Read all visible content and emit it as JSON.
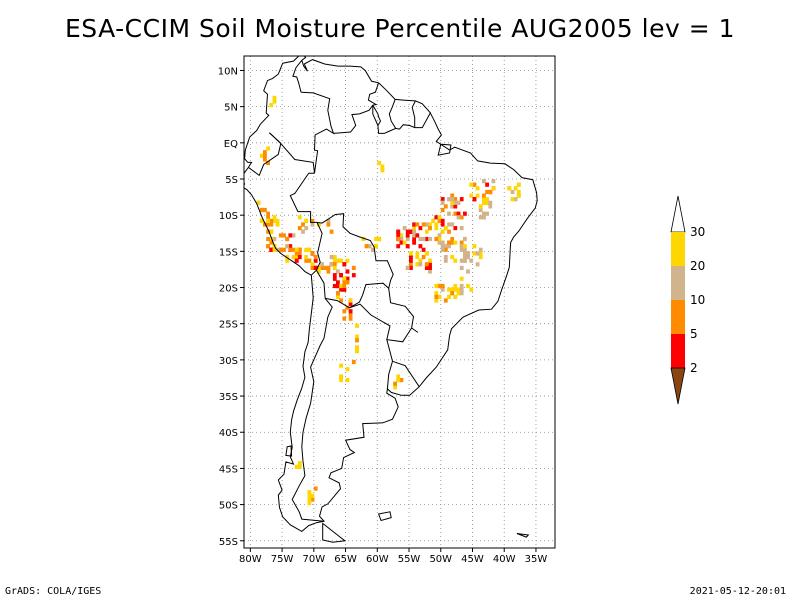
{
  "title": "ESA-CCIM Soil Moisture Percentile AUG2005 lev = 1",
  "footer": {
    "left": "GrADS: COLA/IGES",
    "right": "2021-05-12-20:01"
  },
  "map": {
    "lon_range": [
      -81,
      -32
    ],
    "lat_range": [
      -56,
      12
    ],
    "lon_ticks": [
      {
        "v": -80,
        "label": "80W"
      },
      {
        "v": -75,
        "label": "75W"
      },
      {
        "v": -70,
        "label": "70W"
      },
      {
        "v": -65,
        "label": "65W"
      },
      {
        "v": -60,
        "label": "60W"
      },
      {
        "v": -55,
        "label": "55W"
      },
      {
        "v": -50,
        "label": "50W"
      },
      {
        "v": -45,
        "label": "45W"
      },
      {
        "v": -40,
        "label": "40W"
      },
      {
        "v": -35,
        "label": "35W"
      }
    ],
    "lat_ticks": [
      {
        "v": 10,
        "label": "10N"
      },
      {
        "v": 5,
        "label": "5N"
      },
      {
        "v": 0,
        "label": "EQ"
      },
      {
        "v": -5,
        "label": "5S"
      },
      {
        "v": -10,
        "label": "10S"
      },
      {
        "v": -15,
        "label": "15S"
      },
      {
        "v": -20,
        "label": "20S"
      },
      {
        "v": -25,
        "label": "25S"
      },
      {
        "v": -30,
        "label": "30S"
      },
      {
        "v": -35,
        "label": "35S"
      },
      {
        "v": -40,
        "label": "40S"
      },
      {
        "v": -45,
        "label": "45S"
      },
      {
        "v": -50,
        "label": "50S"
      },
      {
        "v": -55,
        "label": "55S"
      }
    ],
    "grid": "dotted"
  },
  "legend": {
    "labels": [
      "2",
      "5",
      "10",
      "20",
      "30"
    ],
    "colors": [
      "#8b4513",
      "#ff0000",
      "#ff8c00",
      "#d2b48c",
      "#ffd700",
      "#ffffff"
    ]
  }
}
